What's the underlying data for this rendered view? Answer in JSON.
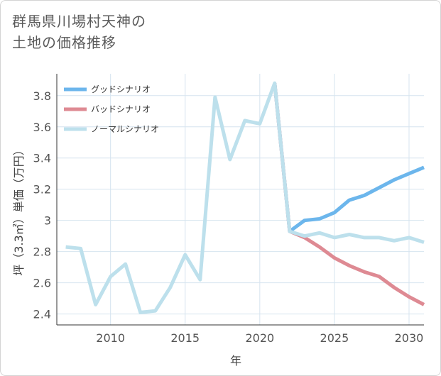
{
  "title": {
    "line1": "群馬県川場村天神の",
    "line2": "土地の価格推移"
  },
  "colors": {
    "good": "#6cb6ec",
    "bad": "#de8a93",
    "normal": "#bde0ec",
    "grid": "#d6e4ef",
    "axis": "#555555"
  },
  "chart_data": {
    "type": "line",
    "xlabel": "年",
    "ylabel": "坪（3.3㎡）単価（万円）",
    "xlim": [
      2006.4,
      2031
    ],
    "ylim": [
      2.33,
      3.94
    ],
    "x_ticks": [
      2010,
      2015,
      2020,
      2025,
      2030
    ],
    "y_ticks": [
      2.4,
      2.6,
      2.8,
      3,
      3.2,
      3.4,
      3.6,
      3.8
    ],
    "y_tick_labels": [
      "2.4",
      "2.6",
      "2.8",
      "3",
      "3.2",
      "3.4",
      "3.6",
      "3.8"
    ],
    "x_tick_labels": [
      "2010",
      "2015",
      "2020",
      "2025",
      "2030"
    ],
    "grid": true,
    "legend_position": "top-left",
    "series": [
      {
        "name": "グッドシナリオ",
        "color_key": "good",
        "x": [
          2021,
          2022,
          2023,
          2024,
          2025,
          2026,
          2027,
          2028,
          2029,
          2030,
          2031
        ],
        "y": [
          3.88,
          2.93,
          3.0,
          3.01,
          3.05,
          3.13,
          3.16,
          3.21,
          3.26,
          3.3,
          3.34
        ]
      },
      {
        "name": "バッドシナリオ",
        "color_key": "bad",
        "x": [
          2021,
          2022,
          2023,
          2024,
          2025,
          2026,
          2027,
          2028,
          2029,
          2030,
          2031
        ],
        "y": [
          3.88,
          2.93,
          2.89,
          2.83,
          2.76,
          2.71,
          2.67,
          2.64,
          2.57,
          2.51,
          2.46
        ]
      },
      {
        "name": "ノーマルシナリオ",
        "color_key": "normal",
        "x": [
          2007,
          2008,
          2009,
          2010,
          2011,
          2012,
          2013,
          2014,
          2015,
          2016,
          2017,
          2018,
          2019,
          2020,
          2021,
          2022,
          2023,
          2024,
          2025,
          2026,
          2027,
          2028,
          2029,
          2030,
          2031
        ],
        "y": [
          2.83,
          2.82,
          2.46,
          2.64,
          2.72,
          2.41,
          2.42,
          2.57,
          2.78,
          2.62,
          3.79,
          3.39,
          3.64,
          3.62,
          3.88,
          2.93,
          2.9,
          2.92,
          2.89,
          2.91,
          2.89,
          2.89,
          2.87,
          2.89,
          2.86
        ]
      }
    ]
  }
}
